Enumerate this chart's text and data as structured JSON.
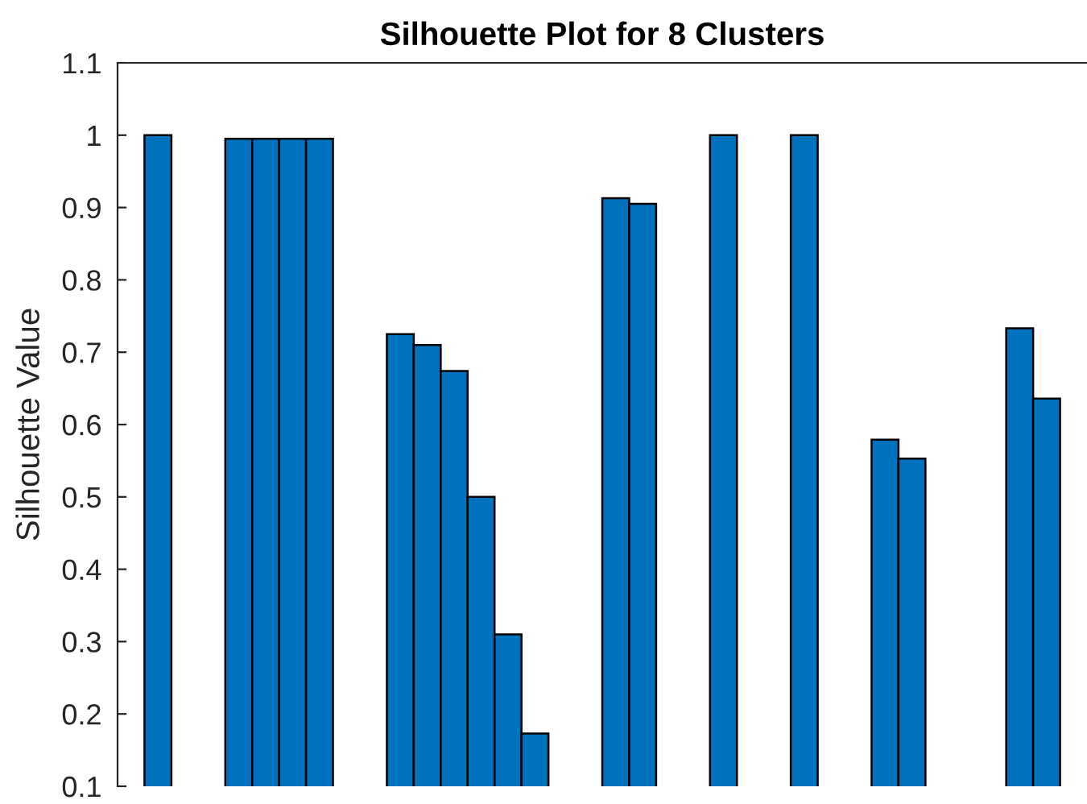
{
  "chart_data": {
    "type": "bar",
    "title": "Silhouette Plot for 8 Clusters",
    "ylabel": "Silhouette Value",
    "categories": [
      null,
      null,
      null,
      null,
      null,
      null,
      null,
      null,
      null,
      null,
      null,
      null,
      null,
      null,
      null,
      null,
      null,
      null,
      null,
      null,
      null,
      null,
      null,
      null,
      null,
      null,
      null,
      null,
      null,
      null,
      null,
      null,
      null,
      null,
      null,
      null
    ],
    "values": [
      null,
      1,
      null,
      null,
      0.995,
      0.995,
      0.995,
      0.995,
      null,
      null,
      0.725,
      0.71,
      0.674,
      0.5,
      0.31,
      0.173,
      null,
      null,
      0.913,
      0.905,
      null,
      null,
      1,
      null,
      null,
      1,
      null,
      null,
      0.579,
      0.553,
      null,
      null,
      null,
      0.733,
      0.636,
      null
    ],
    "color": "#0072bd",
    "ylim": [
      0.1,
      1.1
    ],
    "yticks": [
      0.1,
      0.2,
      0.3,
      0.4,
      0.5,
      0.6,
      0.7,
      0.8,
      0.9,
      1,
      1.1
    ],
    "tick_labels": "y"
  }
}
